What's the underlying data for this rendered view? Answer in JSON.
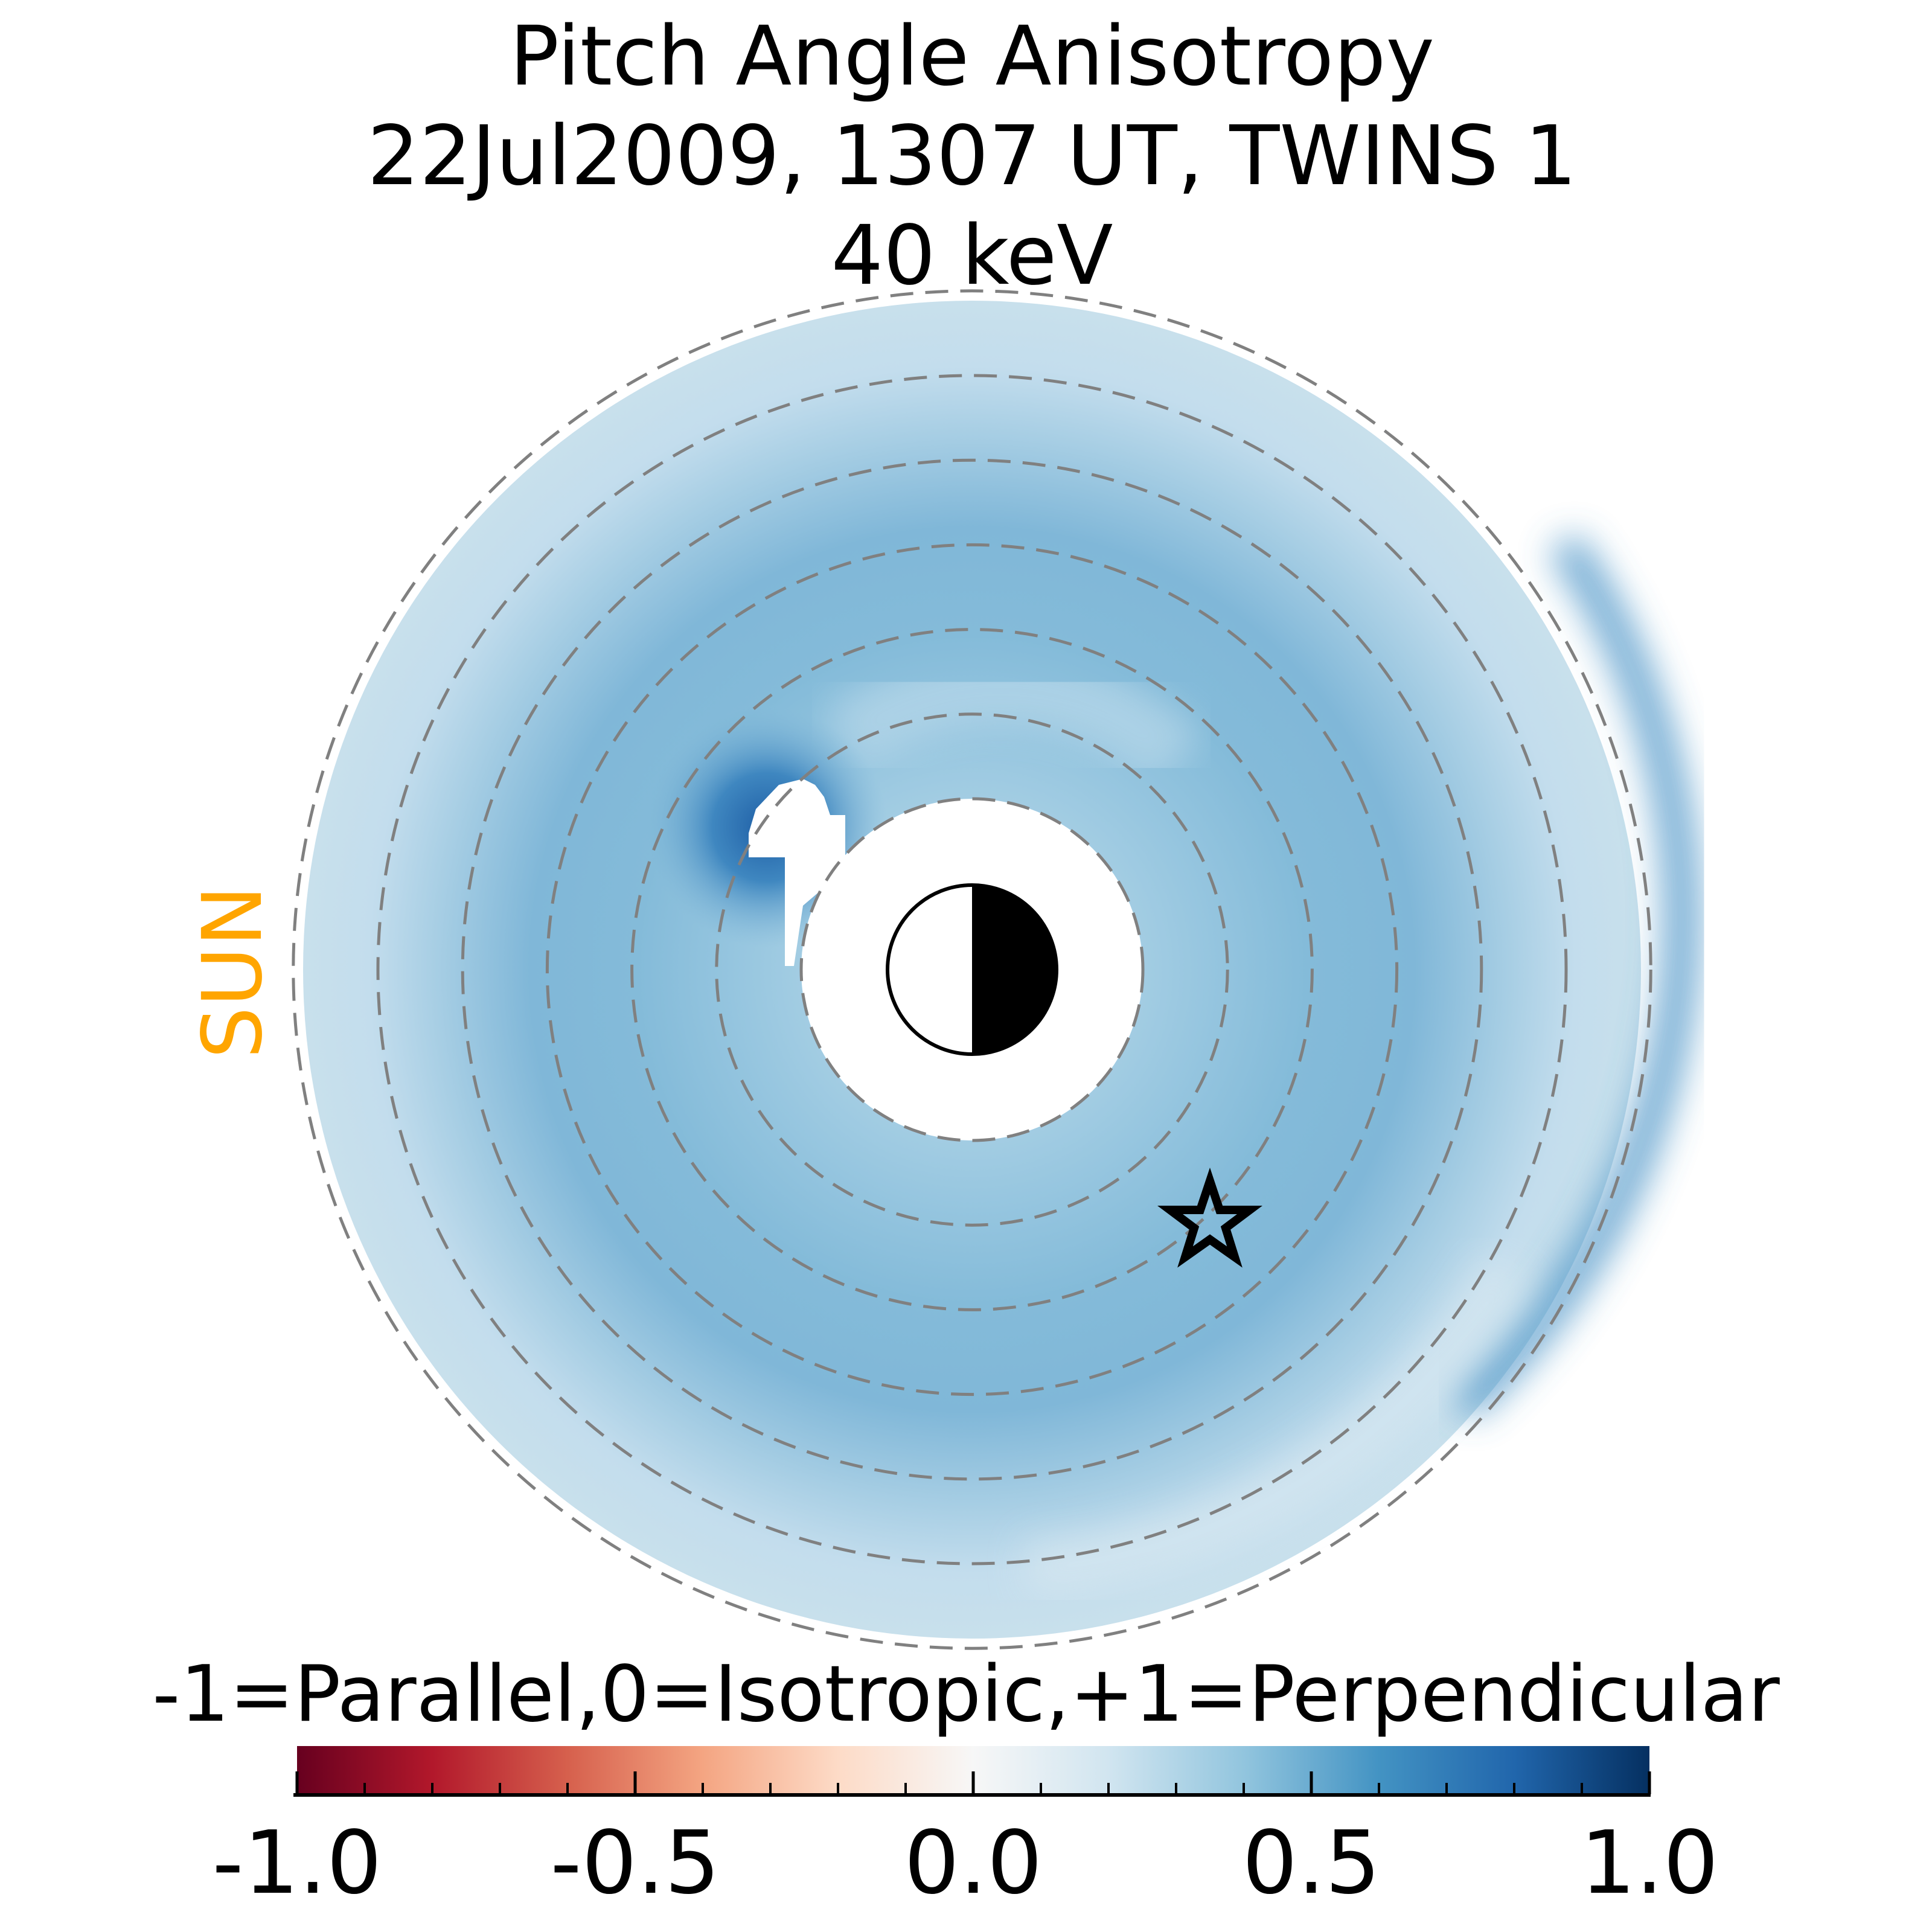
{
  "chart_data": {
    "type": "heatmap",
    "title_lines": [
      "Pitch Angle Anisotropy",
      "22Jul2009, 1307 UT,  TWINS 1",
      "40 keV"
    ],
    "side_label": "SUN",
    "side_label_color": "#FFA500",
    "colorbar": {
      "label": "-1=Parallel,0=Isotropic,+1=Perpendicular",
      "colormap": "RdBu",
      "vmin": -1.0,
      "vmax": 1.0,
      "major_ticks": [
        -1.0,
        -0.5,
        0.0,
        0.5,
        1.0
      ],
      "tick_labels": [
        "-1.0",
        "-0.5",
        "0.0",
        "0.5",
        "1.0"
      ],
      "minor_step": 0.1,
      "stops": [
        "#67001f",
        "#b2182b",
        "#d6604d",
        "#f4a582",
        "#fddbc7",
        "#f7f7f7",
        "#d1e5f0",
        "#92c5de",
        "#4393c3",
        "#2166ac",
        "#053061"
      ]
    },
    "reference_circles_count": 7,
    "typical_value_inner_ring": 0.4,
    "typical_value_outer_ring": 0.2,
    "max_value_near_earth_dawn": 0.9,
    "markers": [
      "earth-day-night-symbol",
      "star-spacecraft-footpoint"
    ]
  }
}
